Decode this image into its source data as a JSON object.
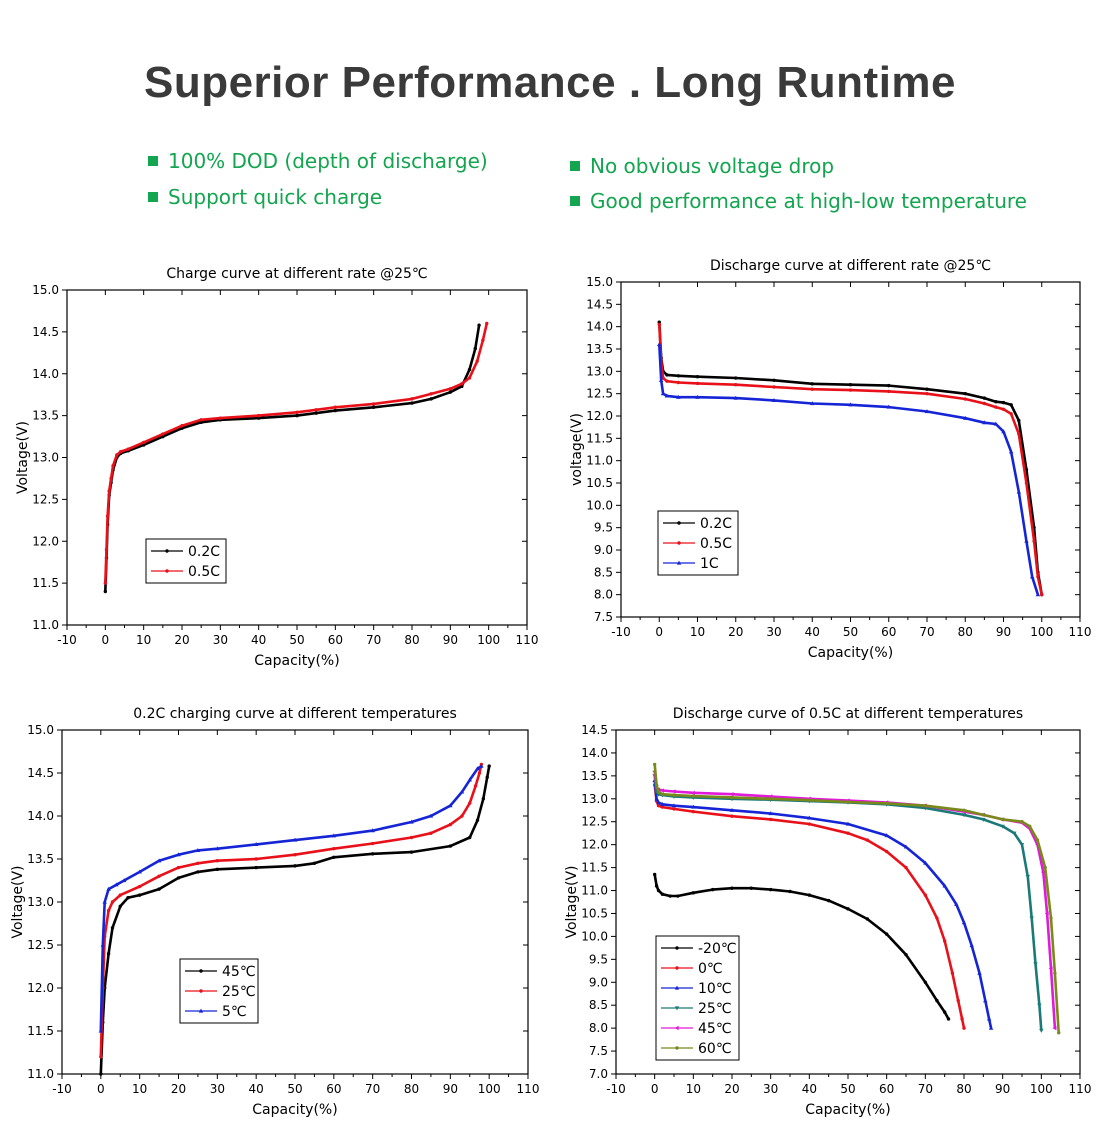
{
  "headline": "Superior Performance . Long Runtime",
  "accent_color": "#13a54f",
  "features": [
    "100% DOD (depth of discharge)",
    "Support quick charge",
    "No obvious voltage drop",
    "Good performance at high-low temperature"
  ],
  "chart_data": [
    {
      "type": "line",
      "title": "Charge curve at different rate @25℃",
      "xlabel": "Capacity(%)",
      "ylabel": "Voltage(V)",
      "xlim": [
        -10,
        110
      ],
      "ylim": [
        11.0,
        15.0
      ],
      "xticks": [
        "-10",
        "0",
        "10",
        "20",
        "30",
        "40",
        "50",
        "60",
        "70",
        "80",
        "90",
        "100",
        "110"
      ],
      "yticks": [
        "11.0",
        "11.5",
        "12.0",
        "12.5",
        "13.0",
        "13.5",
        "14.0",
        "14.5",
        "15.0"
      ],
      "legend": "bottom-left",
      "series": [
        {
          "name": "0.2C",
          "color": "#000000",
          "marker": "dot",
          "x": [
            0,
            0.3,
            0.6,
            1,
            1.5,
            2,
            3,
            4,
            6,
            10,
            15,
            20,
            25,
            30,
            40,
            50,
            55,
            60,
            70,
            80,
            85,
            90,
            93,
            95,
            96.5,
            97.5
          ],
          "y": [
            11.4,
            11.8,
            12.2,
            12.55,
            12.7,
            12.85,
            13.0,
            13.05,
            13.08,
            13.15,
            13.25,
            13.35,
            13.42,
            13.45,
            13.47,
            13.5,
            13.53,
            13.56,
            13.6,
            13.65,
            13.7,
            13.78,
            13.85,
            14.05,
            14.3,
            14.58
          ]
        },
        {
          "name": "0.5C",
          "color": "#e8111a",
          "marker": "dot",
          "x": [
            0,
            0.3,
            0.6,
            1,
            1.5,
            2,
            3,
            4,
            6,
            10,
            15,
            20,
            25,
            30,
            40,
            50,
            55,
            60,
            70,
            80,
            85,
            90,
            93,
            95,
            97,
            98.5,
            99.5
          ],
          "y": [
            11.5,
            11.9,
            12.3,
            12.6,
            12.75,
            12.9,
            13.03,
            13.07,
            13.1,
            13.18,
            13.28,
            13.38,
            13.45,
            13.47,
            13.5,
            13.54,
            13.57,
            13.6,
            13.64,
            13.7,
            13.76,
            13.82,
            13.88,
            13.95,
            14.15,
            14.4,
            14.6
          ]
        }
      ]
    },
    {
      "type": "line",
      "title": "Discharge curve at different rate @25℃",
      "xlabel": "Capacity(%)",
      "ylabel": "voltage(V)",
      "xlim": [
        -10,
        110
      ],
      "ylim": [
        7.5,
        15.0
      ],
      "xticks": [
        "-10",
        "0",
        "10",
        "20",
        "30",
        "40",
        "50",
        "60",
        "70",
        "80",
        "90",
        "100",
        "110"
      ],
      "yticks": [
        "7.5",
        "8.0",
        "8.5",
        "9.0",
        "9.5",
        "10.0",
        "10.5",
        "11.0",
        "11.5",
        "12.0",
        "12.5",
        "13.0",
        "13.5",
        "14.0",
        "14.5",
        "15.0"
      ],
      "legend": "bottom-left",
      "series": [
        {
          "name": "0.2C",
          "color": "#000000",
          "marker": "dot",
          "x": [
            0,
            0.5,
            1,
            2,
            5,
            10,
            20,
            30,
            40,
            50,
            60,
            70,
            80,
            85,
            88,
            90,
            92,
            94,
            96,
            98,
            99,
            100
          ],
          "y": [
            14.1,
            13.3,
            13.0,
            12.92,
            12.9,
            12.88,
            12.85,
            12.8,
            12.72,
            12.7,
            12.68,
            12.6,
            12.5,
            12.4,
            12.32,
            12.3,
            12.25,
            11.9,
            10.8,
            9.5,
            8.5,
            8.0
          ]
        },
        {
          "name": "0.5C",
          "color": "#e8111a",
          "marker": "dot",
          "x": [
            0,
            0.5,
            1,
            2,
            5,
            10,
            20,
            30,
            40,
            50,
            60,
            70,
            80,
            85,
            88,
            90,
            92,
            94,
            96,
            98,
            99,
            100
          ],
          "y": [
            14.05,
            13.2,
            12.85,
            12.78,
            12.75,
            12.73,
            12.7,
            12.65,
            12.6,
            12.58,
            12.55,
            12.5,
            12.38,
            12.28,
            12.2,
            12.15,
            12.05,
            11.6,
            10.5,
            9.2,
            8.4,
            8.0
          ]
        },
        {
          "name": "1C",
          "color": "#1525d6",
          "marker": "triangle",
          "x": [
            0,
            0.5,
            1,
            2,
            5,
            10,
            20,
            30,
            40,
            50,
            60,
            70,
            80,
            85,
            88,
            90,
            92,
            94,
            96,
            97.5,
            99
          ],
          "y": [
            13.6,
            12.8,
            12.5,
            12.45,
            12.42,
            12.42,
            12.4,
            12.35,
            12.28,
            12.25,
            12.2,
            12.1,
            11.95,
            11.85,
            11.82,
            11.65,
            11.2,
            10.3,
            9.2,
            8.4,
            8.0
          ]
        }
      ]
    },
    {
      "type": "line",
      "title": "0.2C charging curve at different temperatures",
      "xlabel": "Capacity(%)",
      "ylabel": "Voltage(V)",
      "xlim": [
        -10,
        110
      ],
      "ylim": [
        11.0,
        15.0
      ],
      "xticks": [
        "-10",
        "0",
        "10",
        "20",
        "30",
        "40",
        "50",
        "60",
        "70",
        "80",
        "90",
        "100",
        "110"
      ],
      "yticks": [
        "11.0",
        "11.5",
        "12.0",
        "12.5",
        "13.0",
        "13.5",
        "14.0",
        "14.5",
        "15.0"
      ],
      "legend": "bottom-left",
      "series": [
        {
          "name": "45℃",
          "color": "#000000",
          "marker": "dot",
          "x": [
            0,
            0.5,
            1,
            2,
            3,
            5,
            7,
            10,
            15,
            20,
            25,
            30,
            40,
            50,
            55,
            60,
            70,
            80,
            90,
            95,
            97,
            98.5,
            99.5,
            100
          ],
          "y": [
            11.0,
            11.6,
            12.0,
            12.4,
            12.7,
            12.95,
            13.05,
            13.08,
            13.15,
            13.28,
            13.35,
            13.38,
            13.4,
            13.42,
            13.45,
            13.52,
            13.56,
            13.58,
            13.65,
            13.75,
            13.95,
            14.2,
            14.45,
            14.58
          ]
        },
        {
          "name": "25℃",
          "color": "#e8111a",
          "marker": "dot",
          "x": [
            0,
            0.5,
            1,
            2,
            3,
            5,
            10,
            15,
            20,
            25,
            30,
            40,
            50,
            60,
            70,
            80,
            85,
            90,
            93,
            95,
            96.5,
            97.5,
            98
          ],
          "y": [
            11.2,
            12.0,
            12.6,
            12.9,
            13.0,
            13.08,
            13.18,
            13.3,
            13.4,
            13.45,
            13.48,
            13.5,
            13.55,
            13.62,
            13.68,
            13.75,
            13.8,
            13.9,
            14.0,
            14.15,
            14.35,
            14.5,
            14.6
          ]
        },
        {
          "name": "5℃",
          "color": "#1525d6",
          "marker": "triangle",
          "x": [
            0,
            0.5,
            1,
            2,
            4,
            6,
            10,
            15,
            20,
            25,
            30,
            40,
            50,
            60,
            70,
            80,
            85,
            90,
            93,
            95,
            97,
            98
          ],
          "y": [
            11.5,
            12.5,
            13.0,
            13.15,
            13.2,
            13.25,
            13.35,
            13.48,
            13.55,
            13.6,
            13.62,
            13.67,
            13.72,
            13.77,
            13.83,
            13.93,
            14.0,
            14.12,
            14.28,
            14.42,
            14.55,
            14.58
          ]
        }
      ]
    },
    {
      "type": "line",
      "title": "Discharge curve of 0.5C at different temperatures",
      "xlabel": "Capacity(%)",
      "ylabel": "Voltage(V)",
      "xlim": [
        -10,
        110
      ],
      "ylim": [
        7.0,
        14.5
      ],
      "xticks": [
        "-10",
        "0",
        "10",
        "20",
        "30",
        "40",
        "50",
        "60",
        "70",
        "80",
        "90",
        "100",
        "110"
      ],
      "yticks": [
        "7.0",
        "7.5",
        "8.0",
        "8.5",
        "9.0",
        "9.5",
        "10.0",
        "10.5",
        "11.0",
        "11.5",
        "12.0",
        "12.5",
        "13.0",
        "13.5",
        "14.0",
        "14.5"
      ],
      "legend": "bottom-left",
      "series": [
        {
          "name": "-20℃",
          "color": "#000000",
          "marker": "dot",
          "x": [
            0,
            0.5,
            1,
            2,
            4,
            6,
            10,
            15,
            20,
            25,
            30,
            35,
            40,
            45,
            50,
            55,
            60,
            65,
            70,
            73,
            75,
            76
          ],
          "y": [
            11.35,
            11.1,
            11.0,
            10.92,
            10.88,
            10.88,
            10.95,
            11.02,
            11.05,
            11.05,
            11.02,
            10.98,
            10.9,
            10.78,
            10.6,
            10.38,
            10.05,
            9.6,
            9.0,
            8.6,
            8.35,
            8.2
          ]
        },
        {
          "name": "0℃",
          "color": "#e8111a",
          "marker": "dot",
          "x": [
            0,
            0.5,
            1,
            2,
            5,
            10,
            20,
            30,
            40,
            50,
            55,
            60,
            65,
            70,
            73,
            75,
            77,
            78.5,
            79.5,
            80
          ],
          "y": [
            13.3,
            12.95,
            12.85,
            12.82,
            12.78,
            12.72,
            12.62,
            12.55,
            12.45,
            12.25,
            12.1,
            11.85,
            11.5,
            10.9,
            10.4,
            9.9,
            9.2,
            8.6,
            8.2,
            8.0
          ]
        },
        {
          "name": "10℃",
          "color": "#1525d6",
          "marker": "triangle",
          "x": [
            0,
            0.5,
            1,
            2,
            5,
            10,
            20,
            30,
            40,
            50,
            60,
            65,
            70,
            75,
            78,
            80,
            82,
            84,
            85.5,
            86.5,
            87
          ],
          "y": [
            13.4,
            13.0,
            12.92,
            12.88,
            12.85,
            12.82,
            12.75,
            12.68,
            12.58,
            12.45,
            12.2,
            11.95,
            11.6,
            11.1,
            10.7,
            10.3,
            9.8,
            9.2,
            8.6,
            8.2,
            8.0
          ]
        },
        {
          "name": "25℃",
          "color": "#1a7a78",
          "marker": "triangle-down",
          "x": [
            0,
            0.5,
            1,
            2,
            5,
            10,
            20,
            30,
            40,
            50,
            60,
            70,
            80,
            85,
            90,
            93,
            95,
            96.5,
            97.5,
            98.5,
            99.5,
            100
          ],
          "y": [
            13.5,
            13.15,
            13.1,
            13.08,
            13.05,
            13.03,
            13.0,
            12.98,
            12.95,
            12.92,
            12.88,
            12.8,
            12.65,
            12.55,
            12.4,
            12.25,
            12.0,
            11.3,
            10.4,
            9.4,
            8.5,
            7.95
          ]
        },
        {
          "name": "45℃",
          "color": "#e01ad8",
          "marker": "triangle-left",
          "x": [
            0,
            0.5,
            1,
            2,
            5,
            10,
            20,
            30,
            40,
            50,
            60,
            70,
            80,
            85,
            90,
            95,
            97,
            99,
            100.5,
            101.5,
            102.5,
            103.5
          ],
          "y": [
            13.6,
            13.25,
            13.2,
            13.18,
            13.16,
            13.13,
            13.1,
            13.05,
            13.0,
            12.96,
            12.92,
            12.85,
            12.72,
            12.65,
            12.55,
            12.48,
            12.35,
            12.0,
            11.4,
            10.5,
            9.3,
            8.0
          ]
        },
        {
          "name": "60℃",
          "color": "#7a8a1a",
          "marker": "dot",
          "x": [
            0,
            0.5,
            1,
            2,
            5,
            10,
            20,
            30,
            40,
            50,
            60,
            70,
            80,
            85,
            90,
            95,
            97,
            99,
            101,
            102.5,
            103.5,
            104.5
          ],
          "y": [
            13.75,
            13.3,
            13.15,
            13.1,
            13.08,
            13.06,
            13.03,
            13.0,
            12.97,
            12.93,
            12.9,
            12.85,
            12.75,
            12.65,
            12.55,
            12.5,
            12.4,
            12.1,
            11.5,
            10.4,
            9.2,
            7.9
          ]
        }
      ]
    }
  ]
}
